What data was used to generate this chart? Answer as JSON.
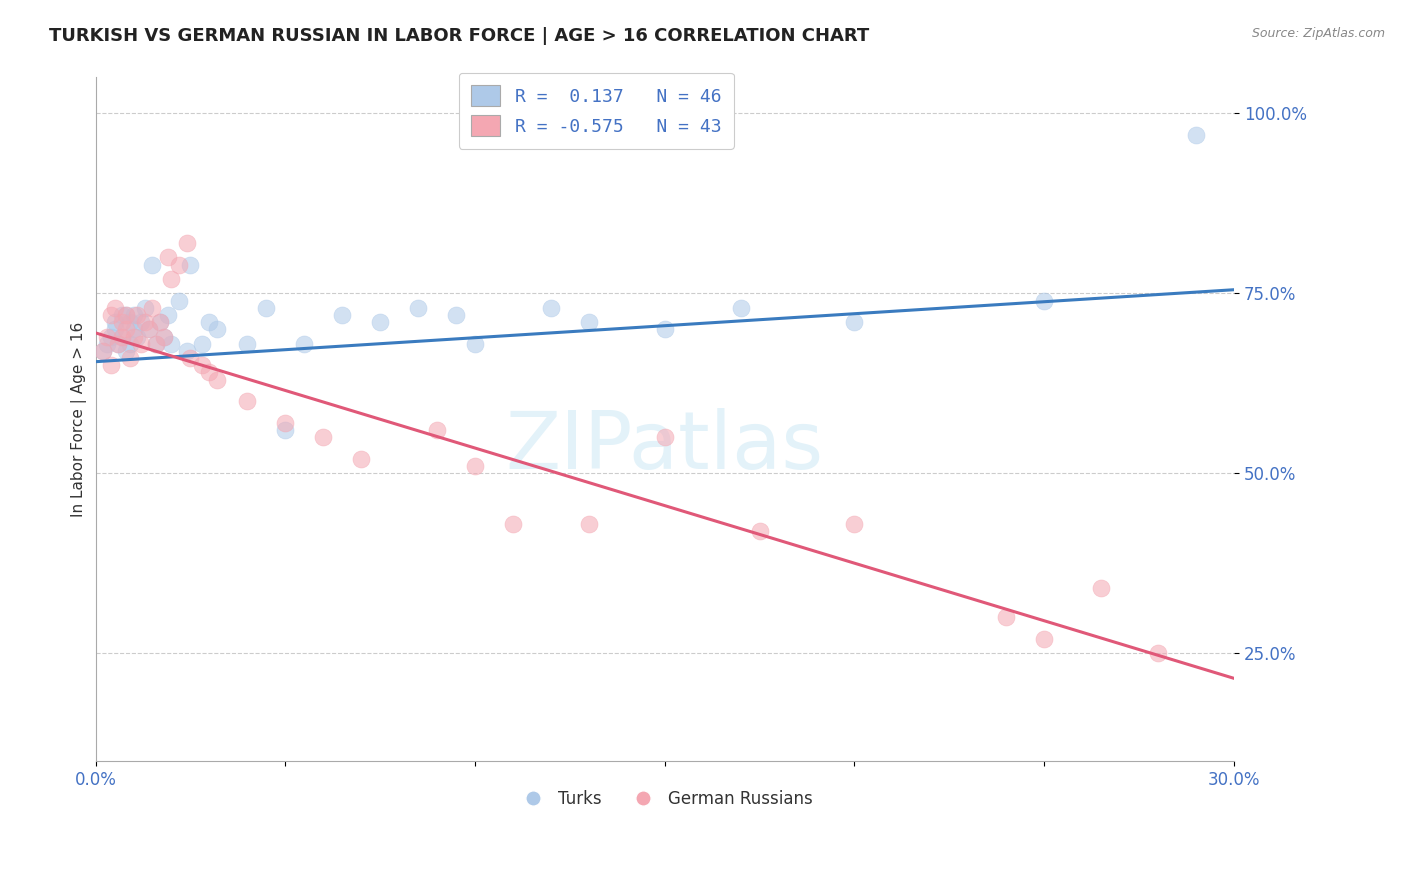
{
  "title": "TURKISH VS GERMAN RUSSIAN IN LABOR FORCE | AGE > 16 CORRELATION CHART",
  "source_text": "Source: ZipAtlas.com",
  "ylabel": "In Labor Force | Age > 16",
  "xlim": [
    0.0,
    0.3
  ],
  "ylim": [
    0.1,
    1.05
  ],
  "xtick_labels": [
    "0.0%",
    "",
    "",
    "",
    "",
    "",
    "30.0%"
  ],
  "xtick_values": [
    0.0,
    0.05,
    0.1,
    0.15,
    0.2,
    0.25,
    0.3
  ],
  "ytick_labels": [
    "25.0%",
    "50.0%",
    "75.0%",
    "100.0%"
  ],
  "ytick_values": [
    0.25,
    0.5,
    0.75,
    1.0
  ],
  "grid_color": "#cccccc",
  "blue_color": "#aec9e8",
  "pink_color": "#f4a7b2",
  "blue_line_color": "#3a7bbf",
  "pink_line_color": "#e05878",
  "r_blue": 0.137,
  "n_blue": 46,
  "r_pink": -0.575,
  "n_pink": 43,
  "legend_label_blue": "Turks",
  "legend_label_pink": "German Russians",
  "watermark": "ZIPatlas",
  "blue_line_x0": 0.0,
  "blue_line_y0": 0.655,
  "blue_line_x1": 0.3,
  "blue_line_y1": 0.755,
  "pink_line_x0": 0.0,
  "pink_line_y0": 0.695,
  "pink_line_x1": 0.3,
  "pink_line_y1": 0.215,
  "blue_scatter_x": [
    0.002,
    0.003,
    0.004,
    0.005,
    0.005,
    0.006,
    0.007,
    0.007,
    0.008,
    0.008,
    0.009,
    0.009,
    0.01,
    0.01,
    0.011,
    0.012,
    0.013,
    0.014,
    0.015,
    0.016,
    0.017,
    0.018,
    0.019,
    0.02,
    0.022,
    0.024,
    0.025,
    0.028,
    0.03,
    0.032,
    0.04,
    0.045,
    0.05,
    0.055,
    0.065,
    0.075,
    0.085,
    0.095,
    0.1,
    0.12,
    0.13,
    0.15,
    0.17,
    0.2,
    0.25,
    0.29
  ],
  "blue_scatter_y": [
    0.67,
    0.68,
    0.69,
    0.7,
    0.71,
    0.68,
    0.72,
    0.69,
    0.67,
    0.72,
    0.68,
    0.71,
    0.7,
    0.72,
    0.69,
    0.71,
    0.73,
    0.7,
    0.79,
    0.68,
    0.71,
    0.69,
    0.72,
    0.68,
    0.74,
    0.67,
    0.79,
    0.68,
    0.71,
    0.7,
    0.68,
    0.73,
    0.56,
    0.68,
    0.72,
    0.71,
    0.73,
    0.72,
    0.68,
    0.73,
    0.71,
    0.7,
    0.73,
    0.71,
    0.74,
    0.97
  ],
  "pink_scatter_x": [
    0.002,
    0.003,
    0.004,
    0.004,
    0.005,
    0.006,
    0.007,
    0.007,
    0.008,
    0.008,
    0.009,
    0.01,
    0.011,
    0.012,
    0.013,
    0.014,
    0.015,
    0.016,
    0.017,
    0.018,
    0.019,
    0.02,
    0.022,
    0.024,
    0.025,
    0.028,
    0.03,
    0.032,
    0.04,
    0.05,
    0.06,
    0.07,
    0.09,
    0.1,
    0.11,
    0.13,
    0.15,
    0.175,
    0.2,
    0.24,
    0.25,
    0.265,
    0.28
  ],
  "pink_scatter_y": [
    0.67,
    0.69,
    0.72,
    0.65,
    0.73,
    0.68,
    0.71,
    0.69,
    0.7,
    0.72,
    0.66,
    0.69,
    0.72,
    0.68,
    0.71,
    0.7,
    0.73,
    0.68,
    0.71,
    0.69,
    0.8,
    0.77,
    0.79,
    0.82,
    0.66,
    0.65,
    0.64,
    0.63,
    0.6,
    0.57,
    0.55,
    0.52,
    0.56,
    0.51,
    0.43,
    0.43,
    0.55,
    0.42,
    0.43,
    0.3,
    0.27,
    0.34,
    0.25
  ]
}
